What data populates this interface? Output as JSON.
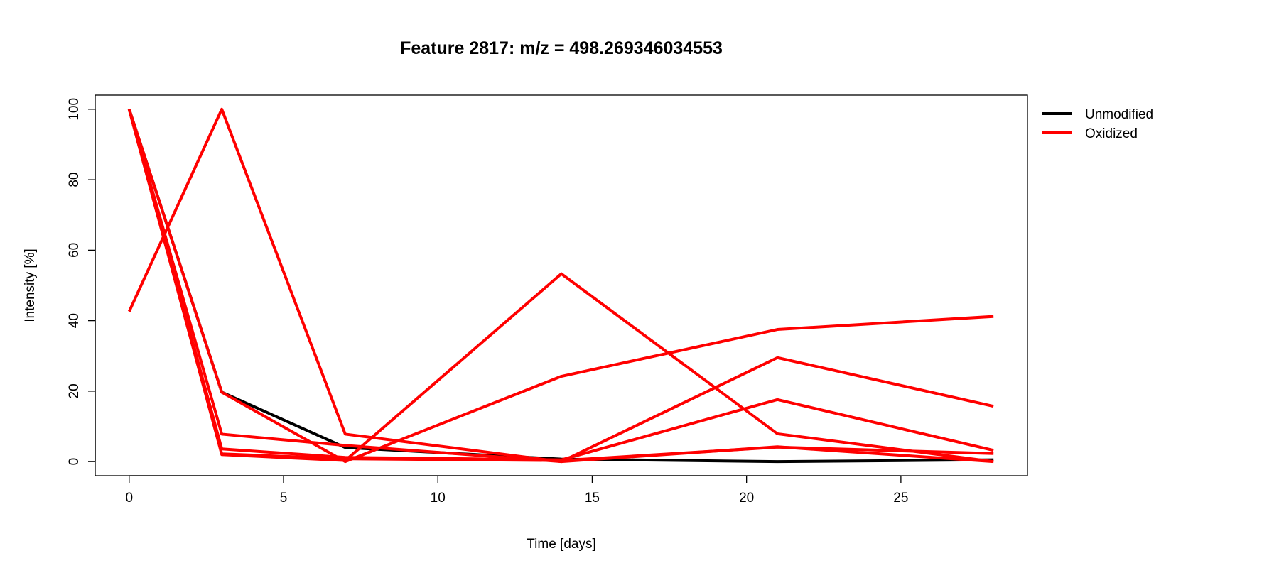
{
  "chart_data": {
    "type": "line",
    "title": "Feature 2817: m/z = 498.269346034553",
    "xlabel": "Time [days]",
    "ylabel": "Intensity [%]",
    "xlim": [
      -1.1,
      29.1
    ],
    "ylim": [
      -4,
      104
    ],
    "x_ticks": [
      0,
      5,
      10,
      15,
      20,
      25
    ],
    "x_tick_labels": [
      "0",
      "5",
      "10",
      "15",
      "20",
      "25"
    ],
    "y_ticks": [
      0,
      20,
      40,
      60,
      80,
      100
    ],
    "y_tick_labels": [
      "0",
      "20",
      "40",
      "60",
      "80",
      "100"
    ],
    "legend_position": "top-right-outside",
    "legend": [
      {
        "label": "Unmodified",
        "color": "#000000"
      },
      {
        "label": "Oxidized",
        "color": "#ff0000"
      }
    ],
    "x": [
      0,
      3,
      7,
      14,
      21,
      28
    ],
    "series": [
      {
        "group": "Unmodified",
        "color": "#000000",
        "values": [
          100,
          19.7,
          4,
          0.7,
          0,
          0.5
        ]
      },
      {
        "group": "Oxidized",
        "color": "#ff0000",
        "values": [
          100,
          19.7,
          0,
          24.2,
          37.5,
          41.2
        ]
      },
      {
        "group": "Oxidized",
        "color": "#ff0000",
        "values": [
          100,
          7.8,
          4.6,
          0,
          29.5,
          15.7
        ]
      },
      {
        "group": "Oxidized",
        "color": "#ff0000",
        "values": [
          100,
          3.6,
          1.2,
          0.5,
          17.6,
          3.2
        ]
      },
      {
        "group": "Oxidized",
        "color": "#ff0000",
        "values": [
          100,
          2.2,
          0.8,
          0.3,
          4.1,
          2.3
        ]
      },
      {
        "group": "Oxidized",
        "color": "#ff0000",
        "values": [
          42.6,
          100,
          7.8,
          0,
          4.2,
          0
        ]
      },
      {
        "group": "Oxidized",
        "color": "#ff0000",
        "values": [
          100,
          2,
          0.3,
          53.3,
          7.9,
          0
        ]
      }
    ]
  }
}
